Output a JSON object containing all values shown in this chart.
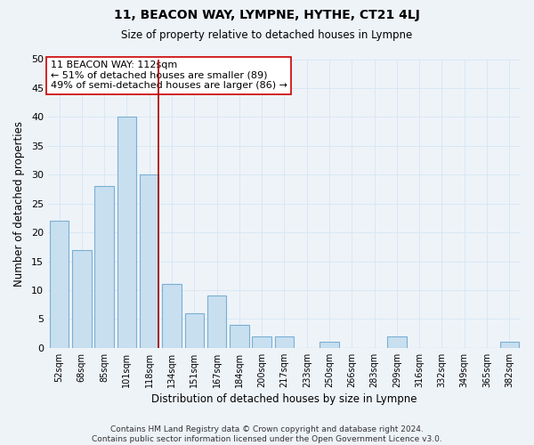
{
  "title": "11, BEACON WAY, LYMPNE, HYTHE, CT21 4LJ",
  "subtitle": "Size of property relative to detached houses in Lympne",
  "xlabel": "Distribution of detached houses by size in Lympne",
  "ylabel": "Number of detached properties",
  "footer_line1": "Contains HM Land Registry data © Crown copyright and database right 2024.",
  "footer_line2": "Contains public sector information licensed under the Open Government Licence v3.0.",
  "bar_labels": [
    "52sqm",
    "68sqm",
    "85sqm",
    "101sqm",
    "118sqm",
    "134sqm",
    "151sqm",
    "167sqm",
    "184sqm",
    "200sqm",
    "217sqm",
    "233sqm",
    "250sqm",
    "266sqm",
    "283sqm",
    "299sqm",
    "316sqm",
    "332sqm",
    "349sqm",
    "365sqm",
    "382sqm"
  ],
  "bar_values": [
    22,
    17,
    28,
    40,
    30,
    11,
    6,
    9,
    4,
    2,
    2,
    0,
    1,
    0,
    0,
    2,
    0,
    0,
    0,
    0,
    1
  ],
  "bar_color": "#c8dff0",
  "bar_edge_color": "#7aafd4",
  "grid_color": "#d8e8f4",
  "background_color": "#eef3f8",
  "property_line_index": 4,
  "property_line_color": "#aa0000",
  "annotation_title": "11 BEACON WAY: 112sqm",
  "annotation_line1": "← 51% of detached houses are smaller (89)",
  "annotation_line2": "49% of semi-detached houses are larger (86) →",
  "annotation_box_color": "#ffffff",
  "annotation_box_edge": "#cc0000",
  "ylim": [
    0,
    50
  ],
  "yticks": [
    0,
    5,
    10,
    15,
    20,
    25,
    30,
    35,
    40,
    45,
    50
  ]
}
